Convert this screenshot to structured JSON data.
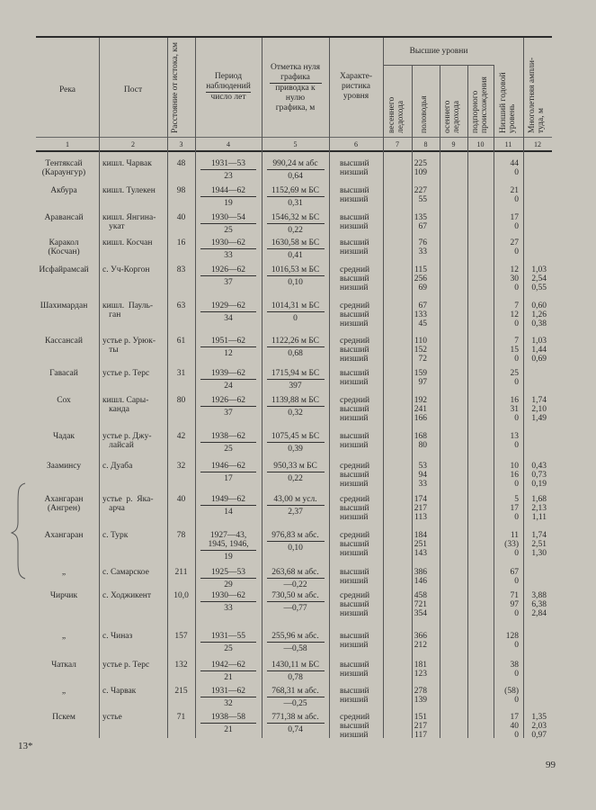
{
  "header": {
    "col1": "Река",
    "col2": "Пост",
    "col3": "Расстояние от истока, км",
    "col4_top": "Период наблюдений",
    "col4_bottom": "число лет",
    "col5_top": "Отметка нуля графика",
    "col5_bottom": "приводка к нулю графика, м",
    "col6": "Характе-ристика уровня",
    "group": "Высшие уровни",
    "col7": "весеннего ледохода",
    "col8": "половодья",
    "col9": "осеннего ледохода",
    "col10": "подпорного происхождения",
    "col11": "Низший годовой уровень",
    "col12": "Многолетняя ампли-туда, м",
    "numbers": [
      "1",
      "2",
      "3",
      "4",
      "5",
      "6",
      "7",
      "8",
      "9",
      "10",
      "11",
      "12"
    ]
  },
  "rows": [
    {
      "river": "Тентяксай\n(Караунгур)",
      "post": "кишл. Чарвак",
      "dist": "48",
      "period": "1931—53",
      "years": "23",
      "elev": "990,24 м абс",
      "corr": "0,64",
      "chars": [
        "высший",
        "низший"
      ],
      "flood": [
        "225",
        "109"
      ],
      "low": [
        "44",
        "0"
      ],
      "amp": []
    },
    {
      "river": "Акбура",
      "post": "кишл. Тулекен",
      "dist": "98",
      "period": "1944—62",
      "years": "19",
      "elev": "1152,69 м БС",
      "corr": "0,31",
      "chars": [
        "высший",
        "низший"
      ],
      "flood": [
        "227",
        "55"
      ],
      "low": [
        "21",
        "0"
      ],
      "amp": []
    },
    {
      "river": "Аравансай",
      "post": "кишл. Янгина-\n   укат",
      "dist": "40",
      "period": "1930—54",
      "years": "25",
      "elev": "1546,32 м БС",
      "corr": "0,22",
      "chars": [
        "высший",
        "низший"
      ],
      "flood": [
        "135",
        "67"
      ],
      "low": [
        "17",
        "0"
      ],
      "amp": []
    },
    {
      "river": "Каракол\n(Косчан)",
      "post": "кишл. Косчан",
      "dist": "16",
      "period": "1930—62",
      "years": "33",
      "elev": "1630,58 м БС",
      "corr": "0,41",
      "chars": [
        "высший",
        "низший"
      ],
      "flood": [
        "76",
        "33"
      ],
      "low": [
        "27",
        "0"
      ],
      "amp": []
    },
    {
      "river": "Исфайрамсай",
      "post": "с. Уч-Коргон",
      "dist": "83",
      "period": "1926—62",
      "years": "37",
      "elev": "1016,53 м БС",
      "corr": "0,10",
      "chars": [
        "средний",
        "высший",
        "низший"
      ],
      "flood": [
        "115",
        "256",
        "69"
      ],
      "low": [
        "12",
        "30",
        "0"
      ],
      "amp": [
        "1,03",
        "2,54",
        "0,55"
      ]
    },
    {
      "river": "Шахимардан",
      "post": "кишл.  Пауль-\n   ган",
      "dist": "63",
      "period": "1929—62",
      "years": "34",
      "elev": "1014,31 м БС",
      "corr": "0",
      "chars": [
        "средний",
        "высший",
        "низший"
      ],
      "flood": [
        "67",
        "133",
        "45"
      ],
      "low": [
        "7",
        "12",
        "0"
      ],
      "amp": [
        "0,60",
        "1,26",
        "0,38"
      ]
    },
    {
      "river": "Кассансай",
      "post": "устье р. Урюк-\n   ты",
      "dist": "61",
      "period": "1951—62",
      "years": "12",
      "elev": "1122,26 м БС",
      "corr": "0,68",
      "chars": [
        "средний",
        "высший",
        "низший"
      ],
      "flood": [
        "110",
        "152",
        "72"
      ],
      "low": [
        "7",
        "15",
        "0"
      ],
      "amp": [
        "1,03",
        "1,44",
        "0,69"
      ]
    },
    {
      "river": "Гавасай",
      "post": "устье р. Терс",
      "dist": "31",
      "period": "1939—62",
      "years": "24",
      "elev": "1715,94 м БС",
      "corr": "397",
      "chars": [
        "высший",
        "низший"
      ],
      "flood": [
        "159",
        "97"
      ],
      "low": [
        "25",
        "0"
      ],
      "amp": []
    },
    {
      "river": "Сох",
      "post": "кишл. Сары-\n   канда",
      "dist": "80",
      "period": "1926—62",
      "years": "37",
      "elev": "1139,88 м БС",
      "corr": "0,32",
      "chars": [
        "средний",
        "высший",
        "низший"
      ],
      "flood": [
        "192",
        "241",
        "166"
      ],
      "low": [
        "16",
        "31",
        "0"
      ],
      "amp": [
        "1,74",
        "2,10",
        "1,49"
      ]
    },
    {
      "river": "Чадак",
      "post": "устье р. Джу-\n   лайсай",
      "dist": "42",
      "period": "1938—62",
      "years": "25",
      "elev": "1075,45 м БС",
      "corr": "0,39",
      "chars": [
        "высший",
        "низший"
      ],
      "flood": [
        "168",
        "80"
      ],
      "low": [
        "13",
        "0"
      ],
      "amp": []
    },
    {
      "river": "Зааминсу",
      "post": "с. Дуаба",
      "dist": "32",
      "period": "1946—62",
      "years": "17",
      "elev": "950,33 м БС",
      "corr": "0,22",
      "chars": [
        "средний",
        "высший",
        "низший"
      ],
      "flood": [
        "53",
        "94",
        "33"
      ],
      "low": [
        "10",
        "16",
        "0"
      ],
      "amp": [
        "0,43",
        "0,73",
        "0,19"
      ]
    },
    {
      "river": "Ахангаран\n(Ангрен)",
      "post": "устье  р.  Яка-\n   арча",
      "dist": "40",
      "period": "1949—62",
      "years": "14",
      "elev": "43,00 м усл.",
      "corr": "2,37",
      "chars": [
        "средний",
        "высший",
        "низший"
      ],
      "flood": [
        "174",
        "217",
        "113"
      ],
      "low": [
        "5",
        "17",
        "0"
      ],
      "amp": [
        "1,68",
        "2,13",
        "1,11"
      ]
    },
    {
      "river": "Ахангаран",
      "post": "с. Турк",
      "dist": "78",
      "period": "1927—43,\n1945, 1946,",
      "years": "19",
      "elev": "976,83 м абс.",
      "corr": "0,10",
      "chars": [
        "средний",
        "высший",
        "низший"
      ],
      "flood": [
        "184",
        "251",
        "143"
      ],
      "low": [
        "11",
        "(33)",
        "0"
      ],
      "amp": [
        "1,74",
        "2,51",
        "1,30"
      ]
    },
    {
      "river": "„",
      "post": "с. Самарское",
      "dist": "211",
      "period": "1925—53",
      "years": "29",
      "elev": "263,68 м абс.",
      "corr": "—0,22",
      "chars": [
        "высший",
        "низший"
      ],
      "flood": [
        "386",
        "146"
      ],
      "low": [
        "67",
        "0"
      ],
      "amp": []
    },
    {
      "river": "Чирчик",
      "post": "с. Ходжикент",
      "dist": "10,0",
      "period": "1930—62",
      "years": "33",
      "elev": "730,50 м абс.",
      "corr": "—0,77",
      "chars": [
        "средний",
        "высший",
        "низший"
      ],
      "flood": [
        "458",
        "721",
        "354"
      ],
      "low": [
        "71",
        "97",
        "0"
      ],
      "amp": [
        "3,88",
        "6,38",
        "2,84"
      ]
    },
    {
      "river": "„",
      "post": "с. Чиназ",
      "dist": "157",
      "period": "1931—55",
      "years": "25",
      "elev": "255,96 м абс.",
      "corr": "—0,58",
      "chars": [
        "высший",
        "низший"
      ],
      "flood": [
        "366",
        "212"
      ],
      "low": [
        "128",
        "0"
      ],
      "amp": []
    },
    {
      "river": "Чаткал",
      "post": "устье р. Терс",
      "dist": "132",
      "period": "1942—62",
      "years": "21",
      "elev": "1430,11 м БС",
      "corr": "0,78",
      "chars": [
        "высший",
        "низший"
      ],
      "flood": [
        "181",
        "123"
      ],
      "low": [
        "38",
        "0"
      ],
      "amp": []
    },
    {
      "river": "„",
      "post": "с. Чарвак",
      "dist": "215",
      "period": "1931—62",
      "years": "32",
      "elev": "768,31 м абс.",
      "corr": "—0,25",
      "chars": [
        "высший",
        "низший"
      ],
      "flood": [
        "278",
        "139"
      ],
      "low": [
        "(58)",
        "0"
      ],
      "amp": []
    },
    {
      "river": "Пскем",
      "post": "устье",
      "dist": "71",
      "period": "1938—58",
      "years": "21",
      "elev": "771,38 м абс.",
      "corr": "0,74",
      "chars": [
        "средний",
        "высший",
        "низший"
      ],
      "flood": [
        "151",
        "217",
        "117"
      ],
      "low": [
        "17",
        "40",
        "0"
      ],
      "amp": [
        "1,35",
        "2,03",
        "0,97"
      ]
    }
  ],
  "footer": {
    "signature_mark": "13*",
    "page_number": "99"
  }
}
